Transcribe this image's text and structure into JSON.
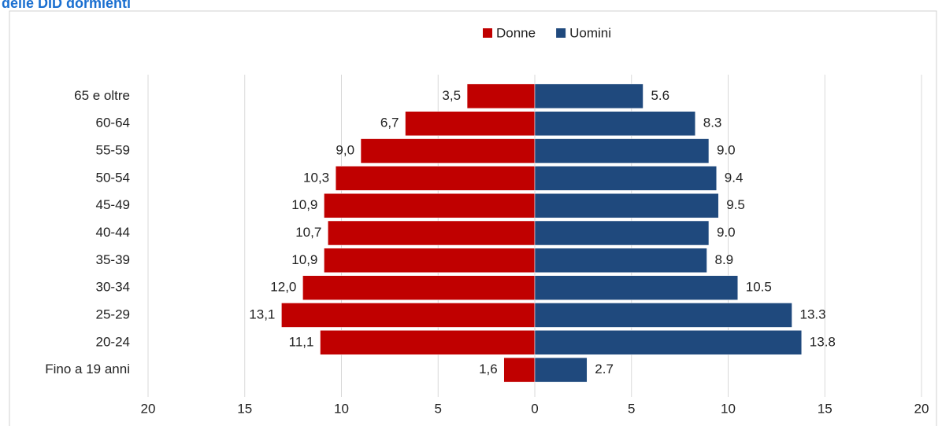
{
  "chart_data": {
    "type": "pyramid",
    "title": "delle DID dormienti",
    "categories": [
      "65 e oltre",
      "60-64",
      "55-59",
      "50-54",
      "45-49",
      "40-44",
      "35-39",
      "30-34",
      "25-29",
      "20-24",
      "Fino a 19 anni"
    ],
    "series": [
      {
        "name": "Donne",
        "color": "#c00000",
        "values": [
          3.5,
          6.7,
          9.0,
          10.3,
          10.9,
          10.7,
          10.9,
          12.0,
          13.1,
          11.1,
          1.6
        ],
        "value_labels": [
          "3,5",
          "6,7",
          "9,0",
          "10,3",
          "10,9",
          "10,7",
          "10,9",
          "12,0",
          "13,1",
          "11,1",
          "1,6"
        ]
      },
      {
        "name": "Uomini",
        "color": "#1f497d",
        "values": [
          5.6,
          8.3,
          9.0,
          9.4,
          9.5,
          9.0,
          8.9,
          10.5,
          13.3,
          13.8,
          2.7
        ],
        "value_labels": [
          "5.6",
          "8.3",
          "9.0",
          "9.4",
          "9.5",
          "9.0",
          "8.9",
          "10.5",
          "13.3",
          "13.8",
          "2.7"
        ]
      }
    ],
    "xlim": [
      -20,
      20
    ],
    "xticks": [
      {
        "value": -20,
        "label": "20"
      },
      {
        "value": -15,
        "label": "15"
      },
      {
        "value": -10,
        "label": "10"
      },
      {
        "value": -5,
        "label": "5"
      },
      0,
      5,
      10,
      15,
      20
    ],
    "grid": true,
    "legend": "top"
  }
}
